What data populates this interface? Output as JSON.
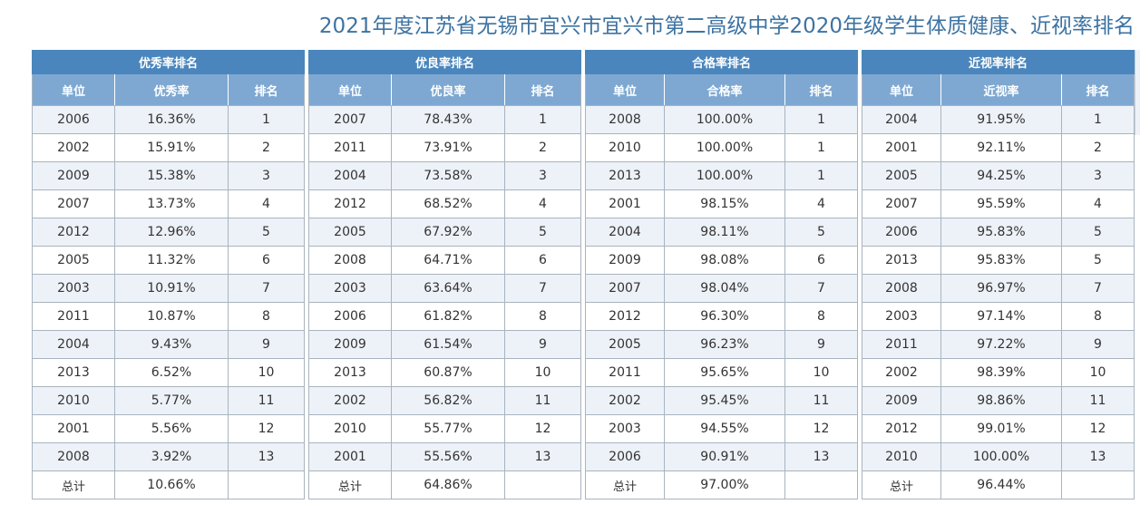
{
  "page_title": "2021年度江苏省无锡市宜兴市宜兴市第二高级中学2020年级学生体质健康、近视率排名",
  "tables": [
    {
      "title": "优秀率排名",
      "headers": [
        "单位",
        "优秀率",
        "排名"
      ],
      "rows": [
        [
          "2006",
          "16.36%",
          "1"
        ],
        [
          "2002",
          "15.91%",
          "2"
        ],
        [
          "2009",
          "15.38%",
          "3"
        ],
        [
          "2007",
          "13.73%",
          "4"
        ],
        [
          "2012",
          "12.96%",
          "5"
        ],
        [
          "2005",
          "11.32%",
          "6"
        ],
        [
          "2003",
          "10.91%",
          "7"
        ],
        [
          "2011",
          "10.87%",
          "8"
        ],
        [
          "2004",
          "9.43%",
          "9"
        ],
        [
          "2013",
          "6.52%",
          "10"
        ],
        [
          "2010",
          "5.77%",
          "11"
        ],
        [
          "2001",
          "5.56%",
          "12"
        ],
        [
          "2008",
          "3.92%",
          "13"
        ]
      ],
      "total": [
        "总计",
        "10.66%",
        ""
      ]
    },
    {
      "title": "优良率排名",
      "headers": [
        "单位",
        "优良率",
        "排名"
      ],
      "rows": [
        [
          "2007",
          "78.43%",
          "1"
        ],
        [
          "2011",
          "73.91%",
          "2"
        ],
        [
          "2004",
          "73.58%",
          "3"
        ],
        [
          "2012",
          "68.52%",
          "4"
        ],
        [
          "2005",
          "67.92%",
          "5"
        ],
        [
          "2008",
          "64.71%",
          "6"
        ],
        [
          "2003",
          "63.64%",
          "7"
        ],
        [
          "2006",
          "61.82%",
          "8"
        ],
        [
          "2009",
          "61.54%",
          "9"
        ],
        [
          "2013",
          "60.87%",
          "10"
        ],
        [
          "2002",
          "56.82%",
          "11"
        ],
        [
          "2010",
          "55.77%",
          "12"
        ],
        [
          "2001",
          "55.56%",
          "13"
        ]
      ],
      "total": [
        "总计",
        "64.86%",
        ""
      ]
    },
    {
      "title": "合格率排名",
      "headers": [
        "单位",
        "合格率",
        "排名"
      ],
      "rows": [
        [
          "2008",
          "100.00%",
          "1"
        ],
        [
          "2010",
          "100.00%",
          "1"
        ],
        [
          "2013",
          "100.00%",
          "1"
        ],
        [
          "2001",
          "98.15%",
          "4"
        ],
        [
          "2004",
          "98.11%",
          "5"
        ],
        [
          "2009",
          "98.08%",
          "6"
        ],
        [
          "2007",
          "98.04%",
          "7"
        ],
        [
          "2012",
          "96.30%",
          "8"
        ],
        [
          "2005",
          "96.23%",
          "9"
        ],
        [
          "2011",
          "95.65%",
          "10"
        ],
        [
          "2002",
          "95.45%",
          "11"
        ],
        [
          "2003",
          "94.55%",
          "12"
        ],
        [
          "2006",
          "90.91%",
          "13"
        ]
      ],
      "total": [
        "总计",
        "97.00%",
        ""
      ]
    },
    {
      "title": "近视率排名",
      "headers": [
        "单位",
        "近视率",
        "排名"
      ],
      "rows": [
        [
          "2004",
          "91.95%",
          "1"
        ],
        [
          "2001",
          "92.11%",
          "2"
        ],
        [
          "2005",
          "94.25%",
          "3"
        ],
        [
          "2007",
          "95.59%",
          "4"
        ],
        [
          "2006",
          "95.83%",
          "5"
        ],
        [
          "2013",
          "95.83%",
          "5"
        ],
        [
          "2008",
          "96.97%",
          "7"
        ],
        [
          "2003",
          "97.14%",
          "8"
        ],
        [
          "2011",
          "97.22%",
          "9"
        ],
        [
          "2002",
          "98.39%",
          "10"
        ],
        [
          "2009",
          "98.86%",
          "11"
        ],
        [
          "2012",
          "99.01%",
          "12"
        ],
        [
          "2010",
          "100.00%",
          "13"
        ]
      ],
      "total": [
        "总计",
        "96.44%",
        ""
      ]
    }
  ],
  "colors": {
    "title_text": "#3d73a2",
    "table_title_bg": "#4a86bd",
    "header_bg": "#7ea8d2",
    "row_alt_bg": "#edf2f8",
    "border": "#a9b4bf"
  }
}
